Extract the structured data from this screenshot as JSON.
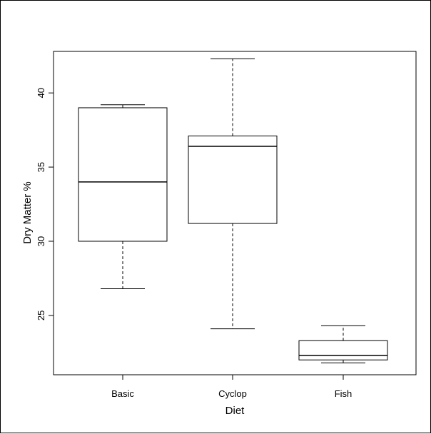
{
  "chart_data": {
    "type": "boxplot",
    "title": "",
    "xlabel": "Diet",
    "ylabel": "Dry Matter %",
    "categories": [
      "Basic",
      "Cyclop",
      "Fish"
    ],
    "ylim": [
      21.0,
      42.8
    ],
    "yticks": [
      25,
      30,
      35,
      40
    ],
    "ytick_labels": [
      "25",
      "30",
      "35",
      "40"
    ],
    "grid": false,
    "boxes": [
      {
        "name": "Basic",
        "whisker_low": 26.8,
        "q1": 30.0,
        "median": 34.0,
        "q3": 39.0,
        "whisker_high": 39.2
      },
      {
        "name": "Cyclop",
        "whisker_low": 24.1,
        "q1": 31.2,
        "median": 36.4,
        "q3": 37.1,
        "whisker_high": 42.3
      },
      {
        "name": "Fish",
        "whisker_low": 21.8,
        "q1": 22.0,
        "median": 22.3,
        "q3": 23.3,
        "whisker_high": 24.3
      }
    ],
    "colors": {
      "box_fill": "#ffffff",
      "stroke": "#000000"
    }
  }
}
